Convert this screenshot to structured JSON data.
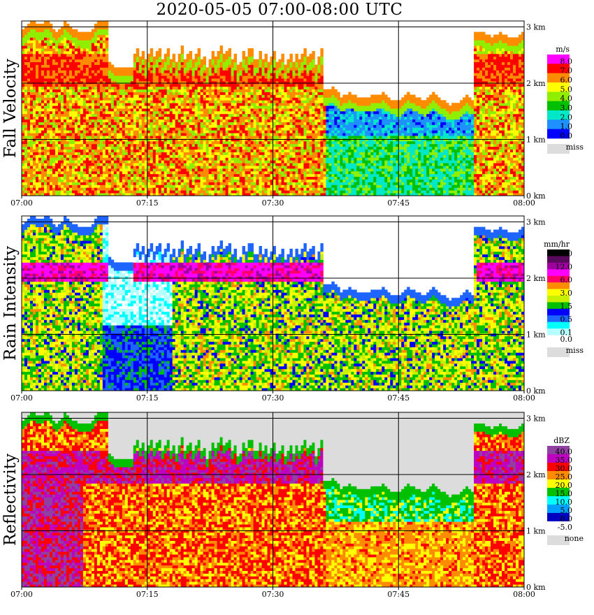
{
  "title": "2020-05-05   07:00-08:00 UTC",
  "chart_data": [
    {
      "type": "heatmap",
      "ylabel": "Fall Velocity",
      "xticks": [
        "07:00",
        "07:15",
        "07:30",
        "07:45",
        "08:00"
      ],
      "yticks": [
        "0 km",
        "1 km",
        "2 km",
        "3 km"
      ],
      "legend_unit": "m/s",
      "legend": [
        {
          "label": "8.0",
          "color": "#ff00ff"
        },
        {
          "label": "7.0",
          "color": "#ff0000"
        },
        {
          "label": "6.0",
          "color": "#ff8c00"
        },
        {
          "label": "5.0",
          "color": "#ffff00"
        },
        {
          "label": "4.0",
          "color": "#90ee00"
        },
        {
          "label": "3.0",
          "color": "#00c000"
        },
        {
          "label": "2.0",
          "color": "#00e8c8"
        },
        {
          "label": "1.0",
          "color": "#1e90ff"
        },
        {
          "label": "0.0",
          "color": "#0000ff"
        }
      ],
      "miss_label": "miss",
      "miss_color": "#dcdcdc",
      "hour_start": "07:00",
      "hour_end": "08:00",
      "height_range_km": [
        0,
        3.2
      ]
    },
    {
      "type": "heatmap",
      "ylabel": "Rain Intensity",
      "xticks": [
        "07:00",
        "07:15",
        "07:30",
        "07:45",
        "08:00"
      ],
      "yticks": [
        "0 km",
        "1 km",
        "2 km",
        "3 km"
      ],
      "legend_unit": "mm/hr",
      "legend": [
        {
          "label": "48.0",
          "color": "#000000"
        },
        {
          "label": "",
          "color": "#5a0a5a"
        },
        {
          "label": "12.0",
          "color": "#a000a0"
        },
        {
          "label": "",
          "color": "#ff00ff"
        },
        {
          "label": "6.0",
          "color": "#ff0066"
        },
        {
          "label": "",
          "color": "#ff8c00"
        },
        {
          "label": "3.0",
          "color": "#ffff00"
        },
        {
          "label": "",
          "color": "#c8f000"
        },
        {
          "label": "1.5",
          "color": "#00c000"
        },
        {
          "label": "",
          "color": "#0000ff"
        },
        {
          "label": "0.5",
          "color": "#1e64ff"
        },
        {
          "label": "",
          "color": "#00ffff"
        },
        {
          "label": "0.1",
          "color": "#b4ffff"
        },
        {
          "label": "0.0",
          "color": "#ffffff"
        }
      ],
      "miss_label": "miss",
      "miss_color": "#dcdcdc",
      "hour_start": "07:00",
      "hour_end": "08:00",
      "height_range_km": [
        0,
        3.2
      ]
    },
    {
      "type": "heatmap",
      "ylabel": "Reflectivity",
      "xticks": [
        "07:00",
        "07:15",
        "07:30",
        "07:45",
        "08:00"
      ],
      "yticks": [
        "0 km",
        "1 km",
        "2 km",
        "3 km"
      ],
      "legend_unit": "dBZ",
      "legend": [
        {
          "label": "40.0",
          "color": "#9040a0"
        },
        {
          "label": "35.0",
          "color": "#c000c0"
        },
        {
          "label": "30.0",
          "color": "#ff0000"
        },
        {
          "label": "25.0",
          "color": "#ff8c00"
        },
        {
          "label": "20.0",
          "color": "#ffff00"
        },
        {
          "label": "15.0",
          "color": "#00c000"
        },
        {
          "label": "10.0",
          "color": "#00ffff"
        },
        {
          "label": "5.0",
          "color": "#00a0ff"
        },
        {
          "label": "0.0",
          "color": "#0000c0"
        },
        {
          "label": "-5.0",
          "color": "#ffffff"
        }
      ],
      "miss_label": "none",
      "miss_color": "#dcdcdc",
      "hour_start": "07:00",
      "hour_end": "08:00",
      "height_range_km": [
        0,
        3.2
      ]
    }
  ]
}
